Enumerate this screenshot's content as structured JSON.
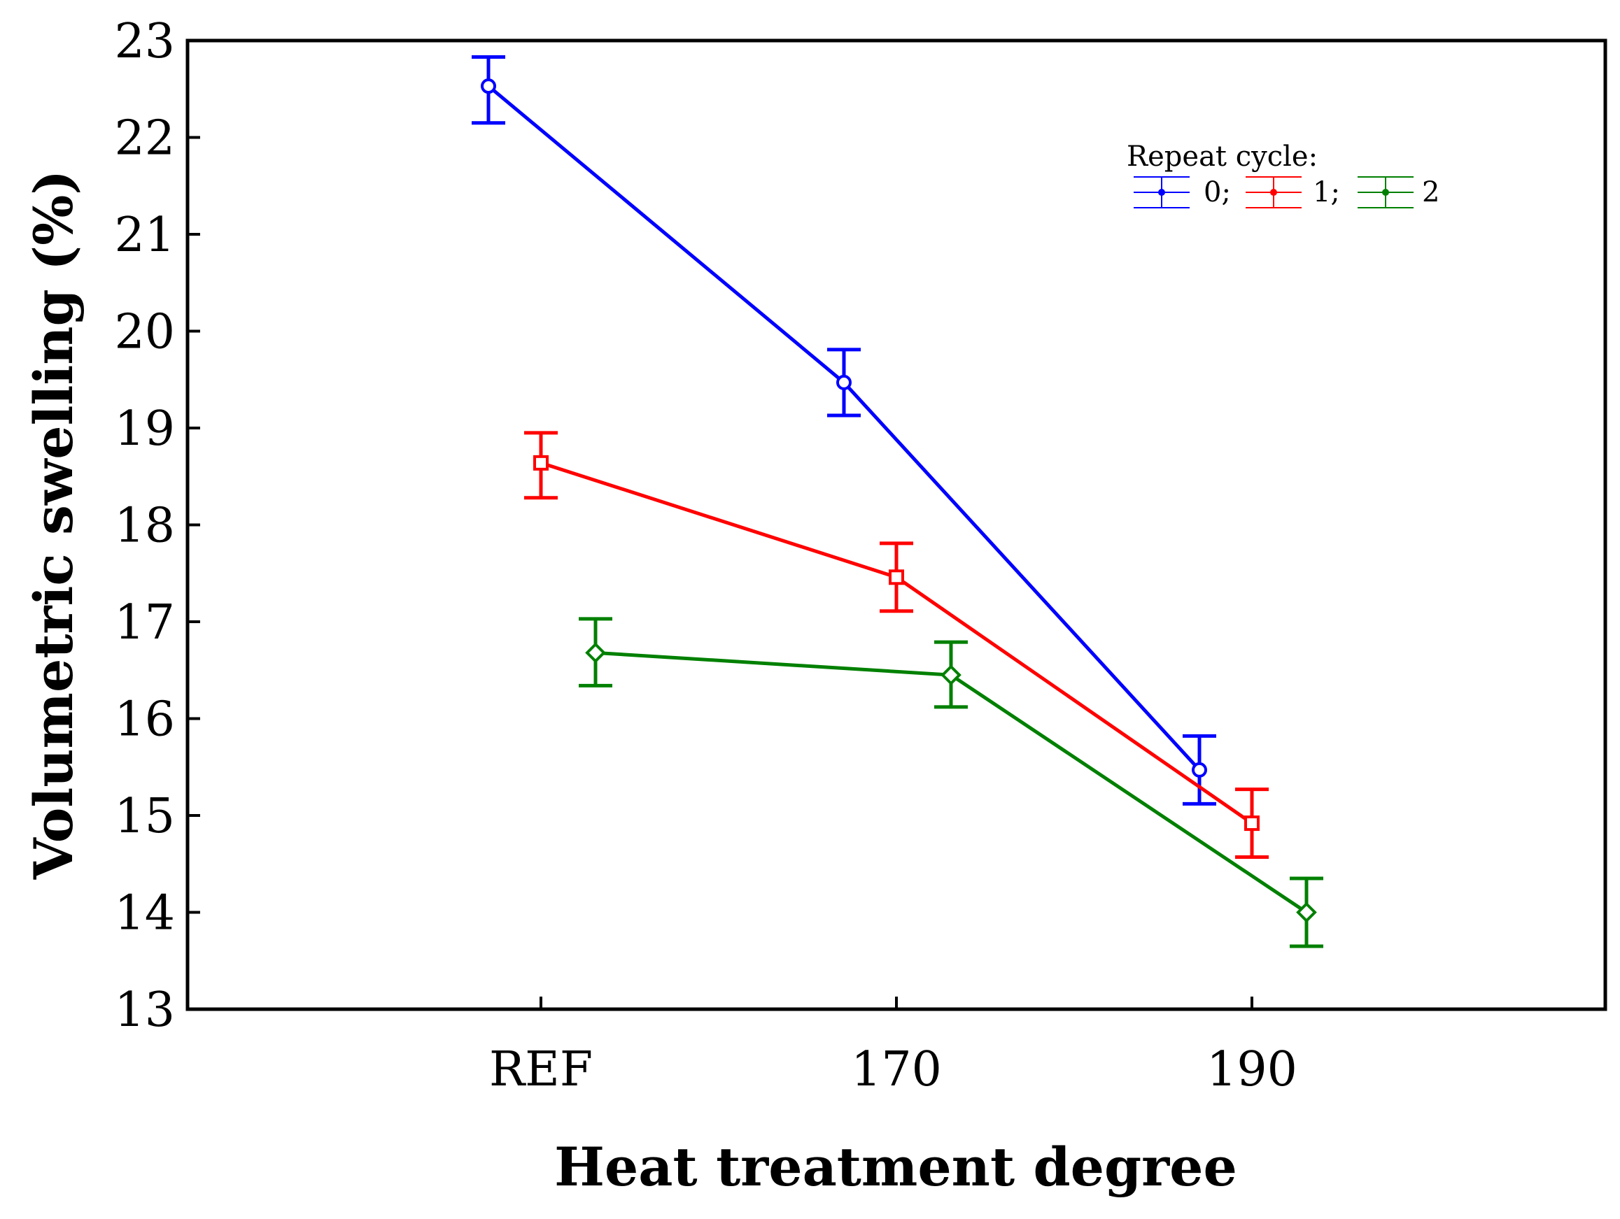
{
  "chart_data": {
    "type": "line",
    "title": "",
    "xlabel": "Heat treatment degree",
    "ylabel": "Volumetric swelling (%)",
    "categories": [
      "REF",
      "170",
      "190"
    ],
    "ylim": [
      13,
      23
    ],
    "yticks": [
      "13",
      "14",
      "15",
      "16",
      "17",
      "18",
      "19",
      "20",
      "21",
      "22",
      "23"
    ],
    "grid": false,
    "error_bars": true,
    "legend": {
      "title": "Repeat cycle:",
      "placement": "top-right",
      "entries": [
        "0;",
        "1;",
        "2"
      ]
    },
    "series": [
      {
        "name": "0",
        "legend_label": "0;",
        "color": "#0000ff",
        "marker": "circle",
        "values": [
          22.53,
          19.47,
          15.47
        ],
        "lower": [
          22.15,
          19.13,
          15.12
        ],
        "upper": [
          22.83,
          19.81,
          15.82
        ]
      },
      {
        "name": "1",
        "legend_label": "1;",
        "color": "#ff0000",
        "marker": "square",
        "values": [
          18.64,
          17.46,
          14.92
        ],
        "lower": [
          18.28,
          17.11,
          14.57
        ],
        "upper": [
          18.95,
          17.81,
          15.27
        ]
      },
      {
        "name": "2",
        "legend_label": "2",
        "color": "#008000",
        "marker": "diamond",
        "values": [
          16.68,
          16.45,
          14.0
        ],
        "lower": [
          16.34,
          16.12,
          13.65
        ],
        "upper": [
          17.03,
          16.79,
          14.35
        ]
      }
    ]
  }
}
